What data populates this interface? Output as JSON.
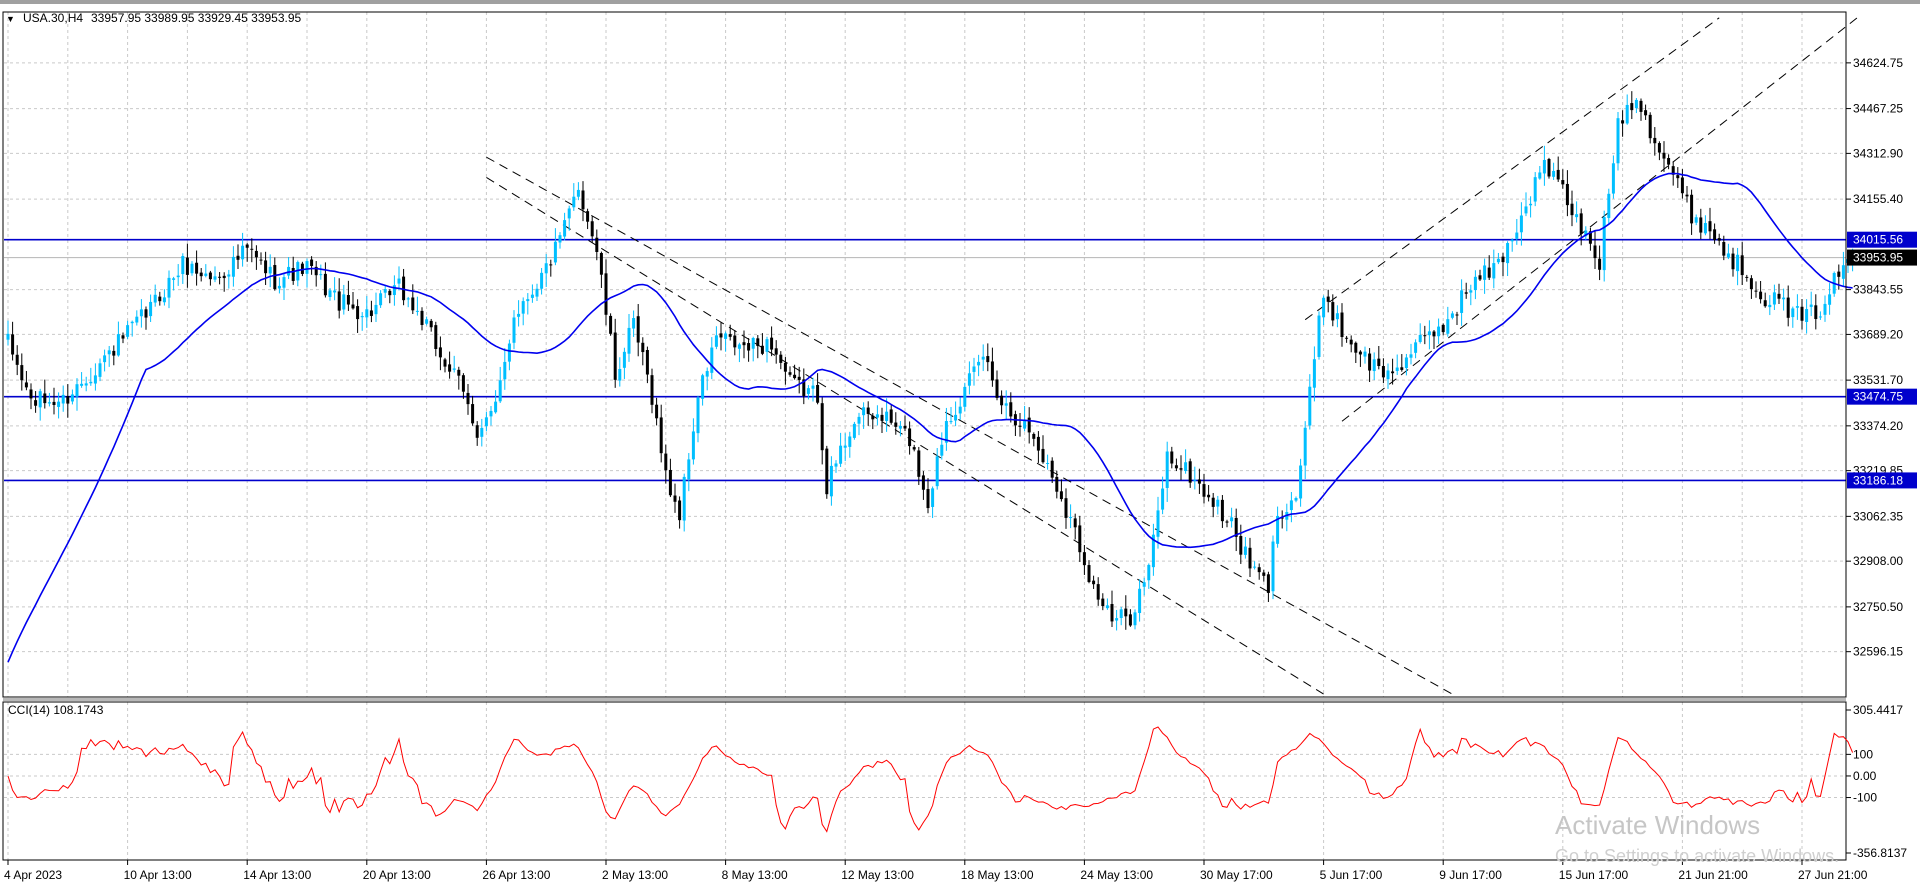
{
  "header": {
    "menu_glyph": "▼",
    "symbol": "USA.30,H4",
    "ohlc": "33957.95 33989.95 33929.45 33953.95"
  },
  "indicator": {
    "label": "CCI(14) 108.1743"
  },
  "watermark": {
    "line1": "Activate Windows",
    "line2": "Go to Settings to activate Windows."
  },
  "chart_data": {
    "type": "candlestick",
    "symbol": "USA.30",
    "timeframe": "H4",
    "price_axis": {
      "range": [
        32440,
        34800
      ],
      "ticks": [
        "34624.75",
        "34467.25",
        "34312.90",
        "34155.40",
        "33843.55",
        "33689.20",
        "33531.70",
        "33374.20",
        "33219.85",
        "33062.35",
        "32908.00",
        "32750.50",
        "32596.15"
      ],
      "tick_values": [
        34624.75,
        34467.25,
        34312.9,
        34155.4,
        33843.55,
        33689.2,
        33531.7,
        33374.2,
        33219.85,
        33062.35,
        32908.0,
        32750.5,
        32596.15
      ]
    },
    "time_axis": {
      "ticks": [
        "4 Apr 2023",
        "10 Apr 13:00",
        "14 Apr 13:00",
        "20 Apr 13:00",
        "26 Apr 13:00",
        "2 May 13:00",
        "8 May 13:00",
        "12 May 13:00",
        "18 May 13:00",
        "24 May 13:00",
        "30 May 17:00",
        "5 Jun 17:00",
        "9 Jun 17:00",
        "15 Jun 17:00",
        "21 Jun 21:00",
        "27 Jun 21:00"
      ],
      "tick_index": [
        0,
        26,
        52,
        78,
        104,
        130,
        156,
        182,
        208,
        234,
        260,
        286,
        312,
        338,
        364,
        390
      ]
    },
    "current_price": {
      "label": "33953.95",
      "value": 33953.95
    },
    "horizontal_levels": [
      {
        "label": "34015.56",
        "value": 34015.56
      },
      {
        "label": "33474.75",
        "value": 33474.75
      },
      {
        "label": "33186.18",
        "value": 33186.18
      }
    ],
    "price_anchors": [
      [
        0,
        33660
      ],
      [
        5,
        33460
      ],
      [
        12,
        33460
      ],
      [
        20,
        33590
      ],
      [
        30,
        33760
      ],
      [
        38,
        33930
      ],
      [
        45,
        33880
      ],
      [
        52,
        33980
      ],
      [
        58,
        33880
      ],
      [
        65,
        33920
      ],
      [
        72,
        33800
      ],
      [
        78,
        33760
      ],
      [
        85,
        33850
      ],
      [
        90,
        33740
      ],
      [
        94,
        33620
      ],
      [
        98,
        33520
      ],
      [
        102,
        33360
      ],
      [
        106,
        33430
      ],
      [
        110,
        33760
      ],
      [
        116,
        33890
      ],
      [
        120,
        34010
      ],
      [
        124,
        34200
      ],
      [
        128,
        33980
      ],
      [
        132,
        33550
      ],
      [
        136,
        33720
      ],
      [
        140,
        33480
      ],
      [
        143,
        33200
      ],
      [
        146,
        33070
      ],
      [
        150,
        33470
      ],
      [
        154,
        33680
      ],
      [
        160,
        33640
      ],
      [
        166,
        33660
      ],
      [
        170,
        33520
      ],
      [
        176,
        33480
      ],
      [
        178,
        33170
      ],
      [
        184,
        33400
      ],
      [
        190,
        33410
      ],
      [
        196,
        33330
      ],
      [
        200,
        33110
      ],
      [
        204,
        33400
      ],
      [
        208,
        33490
      ],
      [
        212,
        33620
      ],
      [
        216,
        33460
      ],
      [
        222,
        33360
      ],
      [
        228,
        33170
      ],
      [
        232,
        33010
      ],
      [
        236,
        32820
      ],
      [
        240,
        32700
      ],
      [
        244,
        32720
      ],
      [
        248,
        32880
      ],
      [
        252,
        33270
      ],
      [
        256,
        33220
      ],
      [
        260,
        33150
      ],
      [
        266,
        33030
      ],
      [
        270,
        32890
      ],
      [
        274,
        32820
      ],
      [
        276,
        33080
      ],
      [
        280,
        33130
      ],
      [
        284,
        33600
      ],
      [
        286,
        33840
      ],
      [
        290,
        33700
      ],
      [
        296,
        33590
      ],
      [
        300,
        33550
      ],
      [
        306,
        33640
      ],
      [
        312,
        33720
      ],
      [
        318,
        33860
      ],
      [
        324,
        33930
      ],
      [
        330,
        34130
      ],
      [
        334,
        34280
      ],
      [
        338,
        34180
      ],
      [
        342,
        34050
      ],
      [
        346,
        33940
      ],
      [
        350,
        34420
      ],
      [
        354,
        34520
      ],
      [
        358,
        34360
      ],
      [
        362,
        34240
      ],
      [
        366,
        34100
      ],
      [
        370,
        34050
      ],
      [
        374,
        33960
      ],
      [
        378,
        33900
      ],
      [
        382,
        33820
      ],
      [
        386,
        33790
      ],
      [
        390,
        33740
      ],
      [
        394,
        33780
      ],
      [
        398,
        33900
      ],
      [
        401,
        33953.95
      ]
    ],
    "series": [
      {
        "name": "USA.30,H4",
        "kind": "candles",
        "colors": {
          "up": "#00bfff",
          "down": "#000000"
        }
      },
      {
        "kind": "moving_average",
        "color": "#0000ee"
      }
    ],
    "trendlines": [
      {
        "from": [
          104,
          34300
        ],
        "to": [
          314,
          32450
        ],
        "style": "dashed"
      },
      {
        "from": [
          104,
          34230
        ],
        "to": [
          286,
          32450
        ],
        "style": "dashed"
      },
      {
        "from": [
          282,
          33740
        ],
        "to": [
          372,
          34780
        ],
        "style": "dashed"
      },
      {
        "from": [
          290,
          33390
        ],
        "to": [
          402,
          34780
        ],
        "style": "dashed"
      }
    ],
    "cci": {
      "name": "CCI(14)",
      "value": 108.1743,
      "range": [
        -356.8137,
        305.4417
      ],
      "ticks": [
        "305.4417",
        "100",
        "0.00",
        "-100",
        "-356.8137"
      ],
      "tick_values": [
        305.4417,
        100,
        0,
        -100,
        -356.8137
      ],
      "color": "#ff0000"
    }
  },
  "colors": {
    "background": "#ffffff",
    "grid": "#c9c9c9",
    "level_line": "#0000cc",
    "level_label_bg": "#0000cc",
    "current_label_bg": "#000000",
    "axis_text": "#000000"
  }
}
